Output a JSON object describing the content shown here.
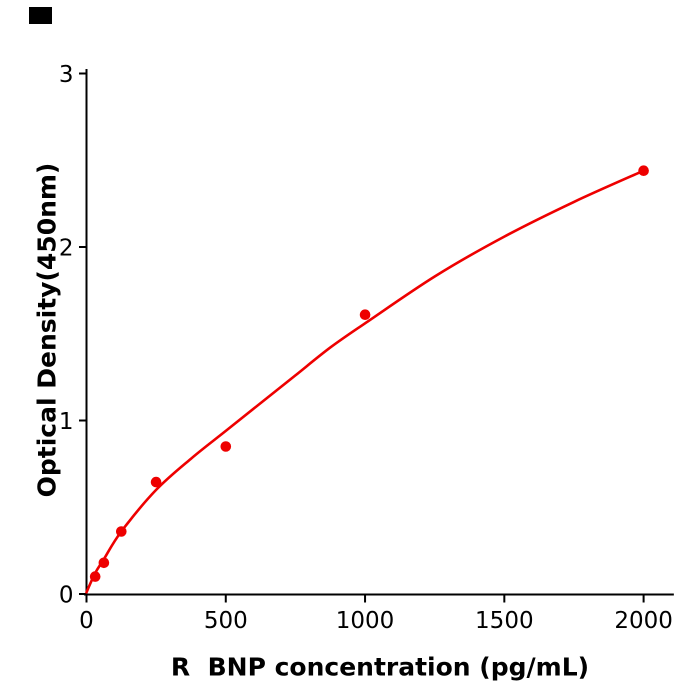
{
  "figure": {
    "background": "#ffffff",
    "corner_mark_color": "#000000"
  },
  "chart_data": {
    "type": "scatter",
    "title": "",
    "xlabel": "R  BNP concentration (pg/mL)",
    "ylabel": "Optical Density(450nm)",
    "xlim": [
      0,
      2105
    ],
    "ylim": [
      0,
      3
    ],
    "x_ticks": [
      0,
      500,
      1000,
      1500,
      2000
    ],
    "y_ticks": [
      0,
      1,
      2,
      3
    ],
    "grid": false,
    "legend": "none",
    "accent_color": "#ee0000",
    "axis_color": "#000000",
    "series": [
      {
        "name": "standard-points",
        "kind": "scatter",
        "color": "#ee0000",
        "marker_radius": 5.3,
        "points": [
          [
            31.25,
            0.1
          ],
          [
            62.5,
            0.18
          ],
          [
            125,
            0.36
          ],
          [
            250,
            0.645
          ],
          [
            500,
            0.85
          ],
          [
            1000,
            1.61
          ],
          [
            2000,
            2.44
          ]
        ]
      },
      {
        "name": "fit-curve",
        "kind": "line",
        "color": "#ee0000",
        "stroke_width": 2.6,
        "points": [
          [
            0,
            0.01
          ],
          [
            31,
            0.12
          ],
          [
            62,
            0.2
          ],
          [
            125,
            0.36
          ],
          [
            250,
            0.6
          ],
          [
            375,
            0.78
          ],
          [
            500,
            0.94
          ],
          [
            625,
            1.1
          ],
          [
            750,
            1.26
          ],
          [
            875,
            1.42
          ],
          [
            1000,
            1.56
          ],
          [
            1250,
            1.83
          ],
          [
            1500,
            2.06
          ],
          [
            1750,
            2.26
          ],
          [
            2000,
            2.44
          ]
        ]
      }
    ]
  }
}
